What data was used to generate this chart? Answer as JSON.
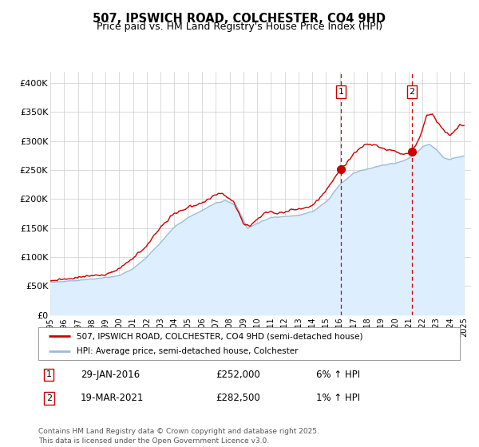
{
  "title": "507, IPSWICH ROAD, COLCHESTER, CO4 9HD",
  "subtitle": "Price paid vs. HM Land Registry's House Price Index (HPI)",
  "ylabel_ticks": [
    "£0",
    "£50K",
    "£100K",
    "£150K",
    "£200K",
    "£250K",
    "£300K",
    "£350K",
    "£400K"
  ],
  "ytick_values": [
    0,
    50000,
    100000,
    150000,
    200000,
    250000,
    300000,
    350000,
    400000
  ],
  "ylim": [
    0,
    420000
  ],
  "xlim_start": 1995.0,
  "xlim_end": 2025.5,
  "transaction1_x": 2016.08,
  "transaction1_y": 252000,
  "transaction2_x": 2021.22,
  "transaction2_y": 282500,
  "red_line_color": "#cc0000",
  "blue_line_color": "#99bbdd",
  "blue_fill_color": "#ddeeff",
  "vline_color": "#cc0000",
  "grid_color": "#cccccc",
  "background_color": "#ffffff",
  "legend_line1": "507, IPSWICH ROAD, COLCHESTER, CO4 9HD (semi-detached house)",
  "legend_line2": "HPI: Average price, semi-detached house, Colchester",
  "annotation1_box": "1",
  "annotation1_date": "29-JAN-2016",
  "annotation1_price": "£252,000",
  "annotation1_hpi": "6% ↑ HPI",
  "annotation2_box": "2",
  "annotation2_date": "19-MAR-2021",
  "annotation2_price": "£282,500",
  "annotation2_hpi": "1% ↑ HPI",
  "footer": "Contains HM Land Registry data © Crown copyright and database right 2025.\nThis data is licensed under the Open Government Licence v3.0.",
  "xtick_years": [
    1995,
    1996,
    1997,
    1998,
    1999,
    2000,
    2001,
    2002,
    2003,
    2004,
    2005,
    2006,
    2007,
    2008,
    2009,
    2010,
    2011,
    2012,
    2013,
    2014,
    2015,
    2016,
    2017,
    2018,
    2019,
    2020,
    2021,
    2022,
    2023,
    2024,
    2025
  ]
}
